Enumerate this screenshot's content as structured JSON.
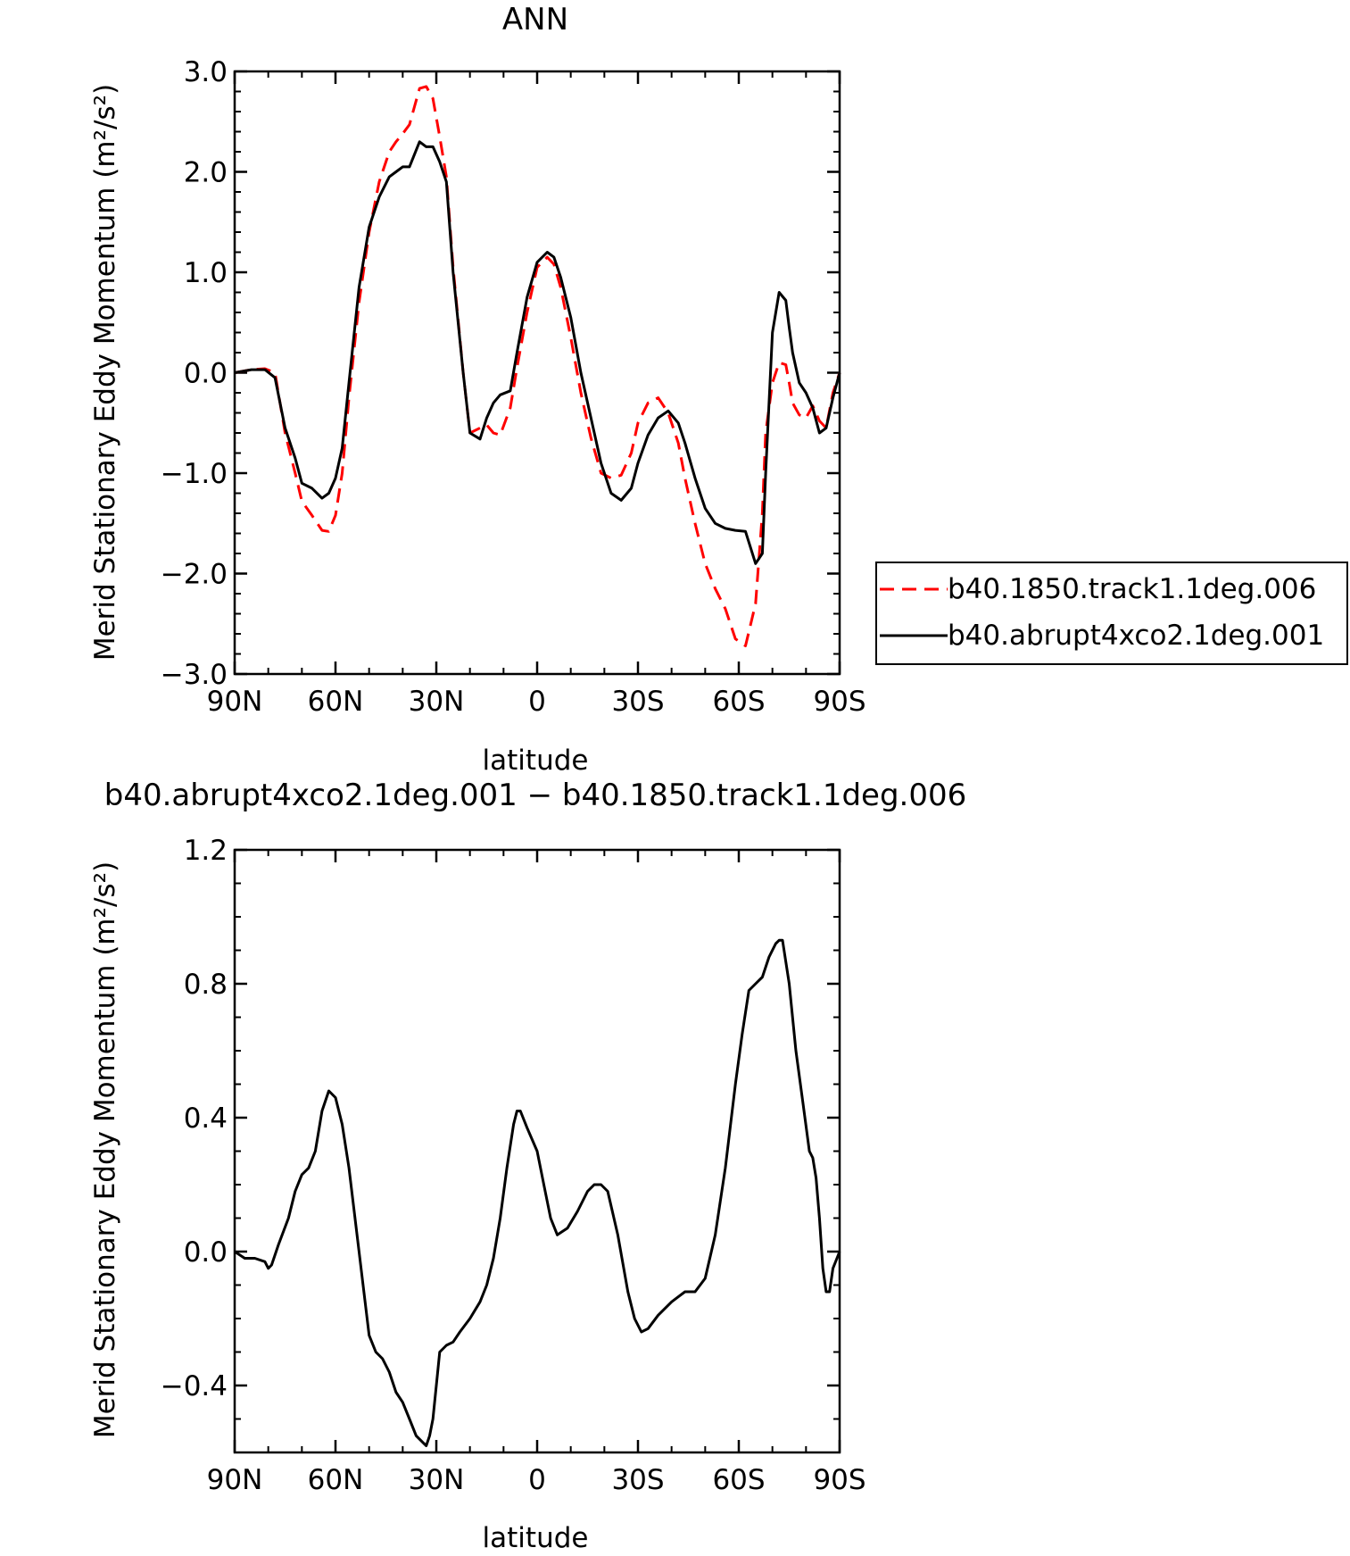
{
  "chart_data": [
    {
      "type": "line",
      "title": "ANN",
      "xlabel": "latitude",
      "ylabel": "Merid Stationary Eddy Momentum (m²/s²)",
      "xlim": [
        90,
        -90
      ],
      "ylim": [
        -3.0,
        3.0
      ],
      "x_ticks": [
        90,
        60,
        30,
        0,
        -30,
        -60,
        -90
      ],
      "x_tick_labels": [
        "90N",
        "60N",
        "30N",
        "0",
        "30S",
        "60S",
        "90S"
      ],
      "y_ticks": [
        -3.0,
        -2.0,
        -1.0,
        0.0,
        1.0,
        2.0,
        3.0
      ],
      "y_tick_labels": [
        "−3.0",
        "−2.0",
        "−1.0",
        "0.0",
        "1.0",
        "2.0",
        "3.0"
      ],
      "legend_position": "right",
      "series": [
        {
          "name": "b40.1850.track1.1deg.006",
          "color": "#ff0000",
          "dash": "dashed",
          "x": [
            90,
            85,
            81,
            78,
            75,
            72,
            70,
            67,
            64,
            62,
            60,
            58,
            56,
            53,
            50,
            47,
            44,
            42,
            40,
            38,
            35,
            33,
            31,
            29,
            27,
            25,
            22,
            20,
            17,
            15,
            13,
            11,
            8,
            6,
            3,
            0,
            -3,
            -5,
            -7,
            -10,
            -13,
            -16,
            -19,
            -22,
            -25,
            -28,
            -30,
            -33,
            -36,
            -39,
            -42,
            -44,
            -47,
            -50,
            -53,
            -56,
            -59,
            -62,
            -65,
            -67,
            -68,
            -70,
            -72,
            -74,
            -75,
            -76,
            -78,
            -80,
            -82,
            -84,
            -86,
            -88,
            -90
          ],
          "y": [
            0.0,
            0.03,
            0.04,
            0.0,
            -0.6,
            -1.0,
            -1.28,
            -1.42,
            -1.57,
            -1.58,
            -1.42,
            -1.0,
            -0.25,
            0.7,
            1.4,
            1.9,
            2.2,
            2.3,
            2.38,
            2.47,
            2.83,
            2.85,
            2.73,
            2.35,
            1.95,
            1.05,
            0.0,
            -0.6,
            -0.55,
            -0.52,
            -0.6,
            -0.62,
            -0.35,
            0.05,
            0.6,
            1.05,
            1.15,
            1.08,
            0.85,
            0.35,
            -0.2,
            -0.65,
            -1.0,
            -1.05,
            -1.02,
            -0.8,
            -0.5,
            -0.3,
            -0.25,
            -0.4,
            -0.7,
            -1.05,
            -1.5,
            -1.9,
            -2.15,
            -2.35,
            -2.65,
            -2.72,
            -2.3,
            -1.4,
            -0.6,
            -0.1,
            0.1,
            0.08,
            -0.1,
            -0.3,
            -0.42,
            -0.45,
            -0.33,
            -0.48,
            -0.55,
            -0.2,
            0.0
          ]
        },
        {
          "name": "b40.abrupt4xco2.1deg.001",
          "color": "#000000",
          "dash": "solid",
          "x": [
            90,
            85,
            81,
            78,
            75,
            72,
            70,
            67,
            64,
            62,
            60,
            58,
            56,
            53,
            50,
            47,
            44,
            42,
            40,
            38,
            35,
            33,
            31,
            29,
            27,
            25,
            22,
            20,
            17,
            15,
            13,
            11,
            8,
            6,
            3,
            0,
            -3,
            -5,
            -7,
            -10,
            -13,
            -16,
            -19,
            -22,
            -25,
            -28,
            -30,
            -33,
            -36,
            -39,
            -42,
            -44,
            -47,
            -50,
            -53,
            -56,
            -59,
            -62,
            -65,
            -67,
            -68,
            -70,
            -72,
            -74,
            -75,
            -76,
            -78,
            -80,
            -82,
            -84,
            -86,
            -88,
            -90
          ],
          "y": [
            0.0,
            0.03,
            0.03,
            -0.05,
            -0.55,
            -0.85,
            -1.1,
            -1.15,
            -1.25,
            -1.2,
            -1.05,
            -0.75,
            -0.1,
            0.85,
            1.45,
            1.75,
            1.95,
            2.0,
            2.05,
            2.05,
            2.3,
            2.25,
            2.25,
            2.1,
            1.9,
            1.0,
            0.0,
            -0.6,
            -0.66,
            -0.45,
            -0.3,
            -0.22,
            -0.18,
            0.2,
            0.75,
            1.1,
            1.2,
            1.15,
            0.95,
            0.55,
            0.0,
            -0.45,
            -0.9,
            -1.2,
            -1.27,
            -1.15,
            -0.9,
            -0.62,
            -0.45,
            -0.38,
            -0.5,
            -0.7,
            -1.05,
            -1.35,
            -1.5,
            -1.55,
            -1.57,
            -1.58,
            -1.9,
            -1.8,
            -1.0,
            0.4,
            0.8,
            0.72,
            0.45,
            0.2,
            -0.1,
            -0.2,
            -0.35,
            -0.6,
            -0.55,
            -0.25,
            0.0
          ]
        }
      ]
    },
    {
      "type": "line",
      "title": "b40.abrupt4xco2.1deg.001 − b40.1850.track1.1deg.006",
      "xlabel": "latitude",
      "ylabel": "Merid Stationary Eddy Momentum (m²/s²)",
      "xlim": [
        90,
        -90
      ],
      "ylim": [
        -0.6,
        1.2
      ],
      "x_ticks": [
        90,
        60,
        30,
        0,
        -30,
        -60,
        -90
      ],
      "x_tick_labels": [
        "90N",
        "60N",
        "30N",
        "0",
        "30S",
        "60S",
        "90S"
      ],
      "y_ticks": [
        -0.4,
        0.0,
        0.4,
        0.8,
        1.2
      ],
      "y_tick_labels": [
        "−0.4",
        "0.0",
        "0.4",
        "0.8",
        "1.2"
      ],
      "series": [
        {
          "color": "#000000",
          "dash": "solid",
          "x": [
            90,
            87,
            84,
            81,
            80,
            79,
            77,
            74,
            72,
            70,
            68,
            66,
            64,
            62,
            60,
            58,
            56,
            53,
            50,
            48,
            46,
            44,
            42,
            40,
            38,
            36,
            34,
            33,
            32,
            31,
            29,
            27,
            25,
            23,
            20,
            17,
            15,
            13,
            11,
            9,
            7,
            6,
            5,
            3,
            0,
            -2,
            -4,
            -6,
            -9,
            -12,
            -15,
            -17,
            -19,
            -21,
            -24,
            -27,
            -29,
            -31,
            -33,
            -36,
            -40,
            -44,
            -47,
            -50,
            -53,
            -56,
            -59,
            -61,
            -63,
            -65,
            -67,
            -69,
            -71,
            -72,
            -73,
            -75,
            -77,
            -79,
            -81,
            -82,
            -83,
            -84,
            -85,
            -86,
            -87,
            -88,
            -90
          ],
          "y": [
            0.0,
            -0.02,
            -0.02,
            -0.03,
            -0.05,
            -0.04,
            0.02,
            0.1,
            0.18,
            0.23,
            0.25,
            0.3,
            0.42,
            0.48,
            0.46,
            0.38,
            0.25,
            0.0,
            -0.25,
            -0.3,
            -0.32,
            -0.36,
            -0.42,
            -0.45,
            -0.5,
            -0.55,
            -0.57,
            -0.58,
            -0.55,
            -0.5,
            -0.3,
            -0.28,
            -0.27,
            -0.24,
            -0.2,
            -0.15,
            -0.1,
            -0.02,
            0.1,
            0.25,
            0.38,
            0.42,
            0.42,
            0.37,
            0.3,
            0.2,
            0.1,
            0.05,
            0.07,
            0.12,
            0.18,
            0.2,
            0.2,
            0.18,
            0.05,
            -0.12,
            -0.2,
            -0.24,
            -0.23,
            -0.19,
            -0.15,
            -0.12,
            -0.12,
            -0.08,
            0.05,
            0.25,
            0.5,
            0.65,
            0.78,
            0.8,
            0.82,
            0.88,
            0.92,
            0.93,
            0.93,
            0.8,
            0.6,
            0.45,
            0.3,
            0.28,
            0.22,
            0.1,
            -0.05,
            -0.12,
            -0.12,
            -0.05,
            0.0
          ]
        }
      ]
    }
  ]
}
